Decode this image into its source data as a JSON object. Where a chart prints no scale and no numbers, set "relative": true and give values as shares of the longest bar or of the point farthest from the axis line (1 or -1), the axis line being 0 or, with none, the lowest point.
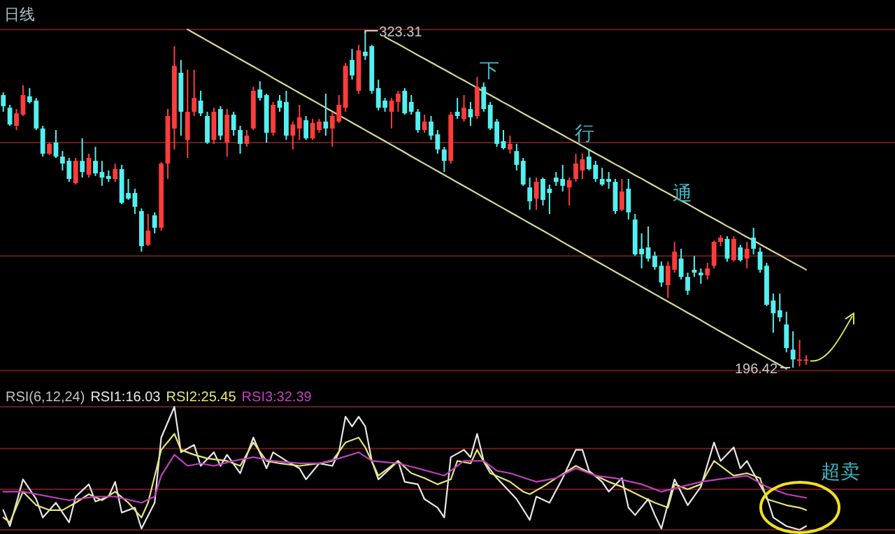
{
  "chart_data": [
    {
      "type": "candlestick",
      "title": "日线",
      "categories": [
        null,
        null,
        null,
        null,
        null,
        null,
        null,
        null,
        null,
        null,
        null,
        null,
        null,
        null,
        null,
        null,
        null,
        null,
        null,
        null,
        null,
        null,
        null,
        null,
        null,
        null,
        null,
        null,
        null,
        null,
        null,
        null,
        null,
        null,
        null,
        null,
        null,
        null,
        null,
        null,
        null,
        null,
        null,
        null,
        null,
        null,
        null,
        null,
        null,
        null,
        null,
        null,
        null,
        null,
        null,
        null,
        null,
        null,
        null,
        null,
        null,
        null,
        null,
        null,
        null,
        null,
        null,
        null,
        null,
        null,
        null,
        null,
        null,
        null,
        null,
        null,
        null,
        null,
        null,
        null,
        null,
        null,
        null,
        null,
        null,
        null,
        null,
        null,
        null,
        null,
        null,
        null,
        null,
        null,
        null,
        null,
        null,
        null,
        null,
        null,
        null,
        null,
        null,
        null,
        null,
        null,
        null,
        null,
        null,
        null,
        null,
        null,
        null,
        null,
        null,
        null,
        null,
        null,
        null,
        null,
        null,
        null,
        null
      ],
      "ohlc": [
        [
          299.1,
          300.1,
          292.8,
          294.9
        ],
        [
          294.3,
          295.4,
          287.5,
          288.0
        ],
        [
          287.5,
          293.8,
          285.9,
          292.2
        ],
        [
          291.7,
          302.8,
          291.2,
          299.1
        ],
        [
          298.6,
          301.7,
          295.9,
          296.5
        ],
        [
          297.0,
          298.0,
          285.9,
          286.5
        ],
        [
          286.5,
          287.5,
          275.9,
          277.0
        ],
        [
          277.0,
          281.2,
          276.5,
          280.7
        ],
        [
          281.2,
          285.9,
          275.4,
          275.9
        ],
        [
          275.9,
          278.0,
          270.7,
          273.3
        ],
        [
          274.3,
          275.4,
          266.4,
          267.5
        ],
        [
          265.9,
          275.4,
          265.4,
          274.3
        ],
        [
          274.3,
          282.8,
          268.0,
          270.1
        ],
        [
          269.1,
          277.0,
          268.0,
          275.4
        ],
        [
          274.3,
          279.6,
          268.6,
          269.6
        ],
        [
          270.1,
          274.3,
          264.9,
          268.0
        ],
        [
          268.6,
          270.7,
          266.4,
          267.5
        ],
        [
          267.5,
          273.3,
          266.4,
          271.2
        ],
        [
          271.2,
          272.8,
          258.0,
          258.5
        ],
        [
          262.2,
          267.5,
          259.6,
          260.1
        ],
        [
          262.2,
          263.8,
          254.3,
          257.0
        ],
        [
          255.4,
          256.4,
          240.1,
          242.2
        ],
        [
          242.7,
          254.3,
          242.2,
          248.0
        ],
        [
          253.8,
          254.9,
          247.0,
          249.1
        ],
        [
          249.1,
          273.8,
          248.0,
          273.3
        ],
        [
          273.3,
          293.8,
          267.5,
          291.2
        ],
        [
          286.5,
          317.5,
          278.6,
          310.1
        ],
        [
          307.5,
          312.3,
          283.8,
          292.8
        ],
        [
          282.2,
          308.6,
          275.4,
          292.8
        ],
        [
          292.8,
          308.6,
          291.2,
          298.0
        ],
        [
          297.0,
          300.7,
          291.2,
          292.2
        ],
        [
          291.2,
          292.8,
          280.7,
          281.2
        ],
        [
          282.2,
          294.3,
          280.7,
          292.8
        ],
        [
          293.8,
          294.9,
          282.2,
          283.8
        ],
        [
          281.2,
          293.8,
          275.9,
          291.7
        ],
        [
          291.7,
          292.8,
          283.8,
          285.9
        ],
        [
          285.9,
          287.5,
          277.0,
          280.7
        ],
        [
          280.7,
          285.9,
          279.6,
          283.8
        ],
        [
          286.5,
          302.2,
          285.9,
          300.7
        ],
        [
          301.2,
          304.3,
          297.0,
          298.0
        ],
        [
          299.1,
          299.6,
          281.2,
          284.9
        ],
        [
          284.9,
          296.5,
          283.8,
          295.4
        ],
        [
          297.0,
          299.1,
          292.8,
          294.3
        ],
        [
          296.5,
          300.7,
          282.2,
          283.8
        ],
        [
          283.8,
          289.1,
          278.6,
          288.0
        ],
        [
          286.5,
          295.4,
          282.2,
          290.7
        ],
        [
          289.6,
          291.2,
          282.2,
          282.8
        ],
        [
          282.8,
          290.1,
          282.2,
          288.6
        ],
        [
          285.9,
          290.1,
          284.9,
          289.1
        ],
        [
          289.1,
          299.6,
          283.8,
          286.5
        ],
        [
          286.5,
          292.8,
          279.6,
          291.2
        ],
        [
          289.1,
          299.1,
          288.6,
          295.4
        ],
        [
          294.3,
          311.2,
          292.8,
          310.1
        ],
        [
          312.3,
          316.5,
          304.9,
          306.5
        ],
        [
          300.7,
          318.0,
          299.6,
          315.9
        ],
        [
          315.4,
          323.31,
          312.3,
          313.8
        ],
        [
          317.5,
          318.0,
          299.6,
          300.7
        ],
        [
          301.7,
          304.9,
          293.3,
          294.3
        ],
        [
          297.0,
          298.0,
          292.8,
          294.3
        ],
        [
          292.8,
          298.0,
          286.5,
          297.0
        ],
        [
          296.5,
          300.7,
          292.8,
          299.6
        ],
        [
          300.7,
          301.7,
          291.7,
          292.2
        ],
        [
          296.5,
          299.1,
          291.7,
          292.8
        ],
        [
          292.8,
          293.8,
          284.9,
          285.9
        ],
        [
          285.9,
          291.7,
          284.9,
          289.1
        ],
        [
          289.1,
          291.2,
          282.2,
          283.8
        ],
        [
          284.3,
          285.9,
          277.0,
          278.6
        ],
        [
          278.6,
          279.6,
          270.1,
          274.3
        ],
        [
          274.3,
          292.8,
          273.3,
          291.7
        ],
        [
          292.8,
          298.0,
          290.1,
          291.2
        ],
        [
          290.1,
          299.1,
          289.1,
          294.3
        ],
        [
          293.8,
          296.5,
          287.5,
          290.7
        ],
        [
          291.2,
          305.9,
          290.1,
          302.2
        ],
        [
          302.2,
          303.8,
          292.8,
          293.8
        ],
        [
          295.4,
          296.5,
          285.9,
          286.5
        ],
        [
          289.1,
          290.1,
          279.6,
          280.7
        ],
        [
          281.7,
          285.9,
          278.6,
          279.1
        ],
        [
          278.6,
          283.8,
          277.0,
          280.7
        ],
        [
          278.0,
          280.7,
          270.7,
          272.8
        ],
        [
          274.3,
          275.4,
          264.9,
          265.4
        ],
        [
          264.3,
          268.0,
          255.9,
          259.1
        ],
        [
          260.1,
          268.0,
          255.9,
          266.4
        ],
        [
          267.5,
          268.0,
          257.5,
          259.6
        ],
        [
          263.8,
          265.4,
          254.3,
          262.2
        ],
        [
          268.0,
          270.1,
          264.9,
          266.4
        ],
        [
          267.5,
          272.8,
          262.8,
          264.9
        ],
        [
          264.3,
          268.0,
          257.5,
          267.0
        ],
        [
          267.5,
          277.0,
          266.4,
          273.3
        ],
        [
          270.7,
          277.0,
          267.5,
          274.9
        ],
        [
          275.9,
          278.6,
          270.7,
          271.2
        ],
        [
          272.8,
          274.3,
          266.4,
          267.5
        ],
        [
          267.5,
          271.7,
          264.9,
          265.4
        ],
        [
          267.5,
          270.1,
          263.8,
          266.4
        ],
        [
          266.4,
          267.5,
          254.3,
          255.4
        ],
        [
          255.9,
          267.5,
          255.4,
          262.8
        ],
        [
          263.8,
          267.5,
          252.2,
          254.9
        ],
        [
          252.2,
          254.3,
          238.5,
          239.1
        ],
        [
          241.2,
          247.0,
          233.8,
          239.1
        ],
        [
          241.7,
          249.6,
          236.4,
          237.5
        ],
        [
          238.5,
          240.1,
          233.3,
          234.3
        ],
        [
          234.8,
          236.4,
          226.9,
          228.5
        ],
        [
          227.5,
          236.4,
          222.7,
          234.8
        ],
        [
          233.3,
          243.8,
          232.2,
          240.1
        ],
        [
          237.5,
          241.2,
          229.6,
          230.6
        ],
        [
          230.6,
          232.2,
          223.8,
          225.4
        ],
        [
          233.3,
          238.5,
          230.6,
          232.2
        ],
        [
          232.2,
          233.8,
          228.0,
          231.2
        ],
        [
          231.2,
          235.9,
          229.6,
          233.8
        ],
        [
          234.8,
          244.3,
          233.8,
          243.8
        ],
        [
          243.8,
          246.4,
          242.2,
          245.4
        ],
        [
          244.9,
          245.9,
          236.4,
          237.5
        ],
        [
          236.9,
          245.9,
          236.4,
          244.9
        ],
        [
          241.7,
          242.7,
          236.4,
          236.9
        ],
        [
          237.5,
          243.8,
          233.8,
          241.2
        ],
        [
          245.4,
          249.1,
          239.1,
          241.2
        ],
        [
          240.1,
          241.7,
          232.2,
          233.3
        ],
        [
          234.8,
          235.9,
          219.6,
          220.1
        ],
        [
          221.7,
          224.3,
          209.6,
          216.9
        ],
        [
          218.0,
          224.3,
          213.8,
          215.4
        ],
        [
          212.7,
          217.5,
          202.2,
          203.8
        ],
        [
          203.2,
          210.1,
          196.42,
          199.5
        ],
        [
          199.0,
          206.9,
          196.9,
          199.5
        ],
        [
          199.0,
          201.1,
          197.5,
          199.5
        ]
      ],
      "colors": [
        "#54f0f0",
        "#54f0f0",
        "#ff3c3c",
        "#ff3c3c",
        "#54f0f0",
        "#54f0f0",
        "#54f0f0",
        "#ff3c3c",
        "#54f0f0",
        "#54f0f0",
        "#54f0f0",
        "#ff3c3c",
        "#54f0f0",
        "#ff3c3c",
        "#54f0f0",
        "#54f0f0",
        "#54f0f0",
        "#ff3c3c",
        "#54f0f0",
        "#54f0f0",
        "#54f0f0",
        "#54f0f0",
        "#ff3c3c",
        "#54f0f0",
        "#ff3c3c",
        "#ff3c3c",
        "#ff3c3c",
        "#54f0f0",
        "#ff3c3c",
        "#ff3c3c",
        "#54f0f0",
        "#54f0f0",
        "#ff3c3c",
        "#54f0f0",
        "#ff3c3c",
        "#54f0f0",
        "#54f0f0",
        "#ff3c3c",
        "#ff3c3c",
        "#54f0f0",
        "#54f0f0",
        "#ff3c3c",
        "#54f0f0",
        "#54f0f0",
        "#ff3c3c",
        "#ff3c3c",
        "#54f0f0",
        "#ff3c3c",
        "#ff3c3c",
        "#54f0f0",
        "#ff3c3c",
        "#ff3c3c",
        "#ff3c3c",
        "#54f0f0",
        "#ff3c3c",
        "#54f0f0",
        "#54f0f0",
        "#54f0f0",
        "#54f0f0",
        "#ff3c3c",
        "#ff3c3c",
        "#54f0f0",
        "#54f0f0",
        "#54f0f0",
        "#ff3c3c",
        "#54f0f0",
        "#54f0f0",
        "#54f0f0",
        "#ff3c3c",
        "#54f0f0",
        "#ff3c3c",
        "#54f0f0",
        "#ff3c3c",
        "#54f0f0",
        "#54f0f0",
        "#54f0f0",
        "#54f0f0",
        "#ff3c3c",
        "#54f0f0",
        "#54f0f0",
        "#54f0f0",
        "#ff3c3c",
        "#54f0f0",
        "#54f0f0",
        "#54f0f0",
        "#54f0f0",
        "#ff3c3c",
        "#ff3c3c",
        "#ff3c3c",
        "#54f0f0",
        "#54f0f0",
        "#54f0f0",
        "#54f0f0",
        "#54f0f0",
        "#ff3c3c",
        "#54f0f0",
        "#54f0f0",
        "#54f0f0",
        "#54f0f0",
        "#54f0f0",
        "#54f0f0",
        "#ff3c3c",
        "#ff3c3c",
        "#54f0f0",
        "#54f0f0",
        "#54f0f0",
        "#54f0f0",
        "#ff3c3c",
        "#ff3c3c",
        "#ff3c3c",
        "#54f0f0",
        "#ff3c3c",
        "#54f0f0",
        "#ff3c3c",
        "#54f0f0",
        "#54f0f0",
        "#54f0f0",
        "#54f0f0",
        "#54f0f0",
        "#54f0f0",
        "#54f0f0",
        "#ff3c3c",
        "#ff3c3c"
      ],
      "series": [
        {
          "type": "line",
          "color": "#d8d898",
          "values": [
            null,
            null,
            null,
            null,
            null,
            null,
            null,
            null,
            null,
            null,
            null,
            null,
            null,
            null,
            null,
            null,
            null,
            null,
            null,
            null,
            null,
            null,
            null,
            null,
            null,
            null,
            null,
            null,
            323.8,
            322.4,
            321.0,
            319.6,
            318.2,
            316.8,
            315.4,
            314.0,
            312.6,
            311.2,
            309.8,
            308.4,
            307.0,
            305.5,
            304.1,
            302.7,
            301.3,
            299.9,
            298.5,
            297.1,
            295.7,
            294.3,
            292.9,
            291.5,
            290.1,
            288.7,
            287.3,
            285.9,
            284.5,
            283.1,
            281.7,
            280.3,
            278.9,
            277.5,
            276.0,
            274.6,
            273.2,
            271.8,
            270.4,
            269.0,
            267.6,
            266.2,
            264.8,
            263.4,
            262.0,
            260.6,
            259.2,
            257.8,
            256.4,
            255.0,
            253.6,
            252.2,
            250.8,
            249.4,
            248.0,
            246.6,
            245.2,
            243.7,
            242.3,
            240.9,
            239.5,
            238.1,
            236.7,
            235.3,
            233.9,
            232.5,
            231.1,
            229.7,
            228.3,
            226.9,
            225.5,
            224.1,
            222.7,
            221.3,
            219.9,
            218.5,
            217.1,
            215.7,
            214.3,
            212.8,
            211.4,
            210.0,
            208.6,
            207.2,
            205.8,
            204.4,
            203.0,
            201.6,
            200.2,
            198.8,
            197.4,
            196.0,
            null,
            null,
            null
          ]
        },
        {
          "type": "line",
          "color": "#d8d898",
          "values": [
            null,
            null,
            null,
            null,
            null,
            null,
            null,
            null,
            null,
            null,
            null,
            null,
            null,
            null,
            null,
            null,
            null,
            null,
            null,
            null,
            null,
            null,
            null,
            null,
            null,
            null,
            null,
            null,
            null,
            null,
            null,
            null,
            null,
            null,
            null,
            null,
            null,
            null,
            null,
            null,
            null,
            null,
            null,
            null,
            null,
            null,
            null,
            null,
            null,
            null,
            null,
            null,
            null,
            null,
            null,
            null,
            null,
            null,
            321.0,
            319.6,
            318.3,
            316.9,
            315.5,
            314.1,
            312.8,
            311.4,
            310.0,
            308.7,
            307.3,
            305.9,
            304.6,
            303.2,
            301.8,
            300.4,
            299.1,
            297.7,
            296.3,
            295.0,
            293.6,
            292.2,
            290.8,
            289.5,
            288.1,
            286.7,
            285.4,
            284.0,
            282.6,
            281.3,
            279.9,
            278.5,
            277.1,
            275.8,
            274.4,
            273.0,
            271.7,
            270.3,
            268.9,
            267.6,
            266.2,
            264.8,
            263.4,
            262.1,
            260.7,
            259.3,
            258.0,
            256.6,
            255.2,
            253.8,
            252.5,
            251.1,
            249.7,
            248.4,
            247.0,
            245.6,
            244.3,
            242.9,
            241.5,
            240.1,
            238.8,
            237.4,
            236.0,
            234.7,
            233.3
          ]
        }
      ],
      "ref_lines": [
        {
          "axis": "y",
          "value": 323.8,
          "color": "#6a1c1c"
        },
        {
          "axis": "y",
          "value": 281.2,
          "color": "#6a1c1c"
        },
        {
          "axis": "y",
          "value": 238.5,
          "color": "#6a1c1c"
        },
        {
          "axis": "y",
          "value": 195.3,
          "color": "#6a1c1c"
        }
      ],
      "annotations": [
        {
          "text": "323.31",
          "y": 323.31
        },
        {
          "text": "196.42",
          "y": 196.42
        },
        "下",
        "行",
        "通"
      ]
    },
    {
      "type": "line",
      "relative": true,
      "categories": [
        null,
        null,
        null,
        null,
        null,
        null,
        null,
        null,
        null,
        null,
        null,
        null,
        null,
        null,
        null,
        null,
        null,
        null,
        null,
        null,
        null,
        null,
        null,
        null,
        null,
        null,
        null,
        null,
        null,
        null,
        null,
        null,
        null,
        null,
        null,
        null,
        null,
        null,
        null,
        null,
        null,
        null,
        null,
        null,
        null,
        null,
        null,
        null,
        null,
        null,
        null,
        null,
        null,
        null,
        null,
        null,
        null,
        null,
        null,
        null,
        null,
        null,
        null,
        null,
        null,
        null,
        null,
        null,
        null,
        null,
        null,
        null,
        null,
        null,
        null,
        null,
        null,
        null,
        null,
        null,
        null,
        null,
        null,
        null,
        null,
        null,
        null,
        null,
        null,
        null,
        null,
        null,
        null,
        null,
        null,
        null,
        null,
        null,
        null,
        null,
        null,
        null,
        null,
        null,
        null,
        null,
        null,
        null,
        null,
        null,
        null,
        null,
        null,
        null,
        null,
        null,
        null,
        null,
        null,
        null,
        null,
        null,
        null
      ],
      "series": [
        {
          "name": "RSI1:16.03",
          "color": "#e8e8e8",
          "values": [
            0.16,
            0.03,
            null,
            0.41,
            null,
            0.25,
            0.1,
            null,
            0.22,
            null,
            0.06,
            0.27,
            null,
            0.37,
            0.23,
            null,
            0.27,
            0.39,
            0.14,
            null,
            0.18,
            0.01,
            null,
            0.22,
            0.75,
            null,
            1.0,
            0.63,
            null,
            0.69,
            0.52,
            null,
            0.63,
            0.52,
            0.61,
            null,
            0.46,
            null,
            0.75,
            null,
            0.5,
            0.63,
            null,
            0.56,
            null,
            0.5,
            0.41,
            null,
            0.54,
            null,
            0.52,
            0.63,
            0.92,
            0.84,
            0.92,
            0.84,
            0.56,
            0.41,
            null,
            null,
            0.56,
            0.39,
            null,
            0.37,
            0.25,
            null,
            0.18,
            0.1,
            0.59,
            null,
            0.65,
            0.59,
            0.78,
            0.56,
            null,
            0.42,
            null,
            null,
            0.25,
            null,
            0.08,
            0.27,
            null,
            0.22,
            null,
            0.42,
            null,
            0.65,
            0.65,
            0.48,
            null,
            0.39,
            0.31,
            null,
            0.42,
            0.18,
            0.12,
            null,
            0.25,
            0.12,
            0.01,
            null,
            0.41,
            null,
            0.2,
            null,
            0.35,
            null,
            0.71,
            0.56,
            null,
            0.67,
            0.5,
            0.56,
            0.46,
            null,
            0.27,
            0.1,
            null,
            0.03,
            null,
            0.0,
            0.03
          ]
        },
        {
          "name": "RSI2:25.45",
          "color": "#e6e67a",
          "values": [
            0.1,
            0.06,
            null,
            0.31,
            null,
            0.2,
            null,
            0.16,
            null,
            0.16,
            null,
            0.22,
            null,
            0.29,
            null,
            0.24,
            null,
            0.31,
            null,
            0.22,
            null,
            0.1,
            0.22,
            null,
            0.65,
            null,
            0.78,
            0.65,
            null,
            0.61,
            null,
            0.58,
            null,
            null,
            0.56,
            null,
            0.52,
            null,
            0.71,
            null,
            0.56,
            null,
            0.54,
            null,
            null,
            0.52,
            null,
            null,
            0.54,
            null,
            0.56,
            null,
            0.71,
            null,
            0.75,
            0.67,
            null,
            0.44,
            null,
            null,
            0.56,
            null,
            0.46,
            null,
            0.42,
            null,
            0.37,
            null,
            0.41,
            0.56,
            null,
            0.54,
            0.65,
            null,
            0.46,
            null,
            null,
            0.39,
            null,
            0.31,
            0.29,
            null,
            0.35,
            null,
            0.42,
            null,
            null,
            0.52,
            null,
            null,
            0.44,
            null,
            0.39,
            null,
            0.35,
            null,
            null,
            0.27,
            null,
            0.22,
            null,
            0.18,
            0.37,
            null,
            0.33,
            null,
            0.37,
            null,
            0.56,
            null,
            null,
            0.44,
            null,
            0.46,
            null,
            0.42,
            0.25,
            null,
            null,
            0.2,
            null,
            0.18,
            0.16
          ]
        },
        {
          "name": "RSI3:32.39",
          "color": "#c040c0",
          "values": [
            0.31,
            null,
            null,
            0.31,
            null,
            null,
            null,
            0.27,
            null,
            null,
            0.24,
            null,
            null,
            null,
            0.27,
            null,
            null,
            0.27,
            null,
            null,
            null,
            0.22,
            null,
            0.27,
            0.44,
            null,
            0.61,
            null,
            0.52,
            null,
            0.54,
            null,
            0.52,
            null,
            null,
            0.56,
            null,
            null,
            0.59,
            null,
            null,
            0.56,
            null,
            null,
            null,
            0.54,
            null,
            null,
            0.54,
            null,
            null,
            0.58,
            null,
            null,
            0.63,
            null,
            0.56,
            null,
            null,
            null,
            0.54,
            null,
            null,
            0.5,
            null,
            null,
            null,
            0.44,
            null,
            null,
            0.56,
            null,
            null,
            0.56,
            null,
            0.48,
            null,
            0.46,
            null,
            null,
            null,
            0.39,
            null,
            null,
            0.42,
            null,
            null,
            0.5,
            null,
            null,
            0.44,
            null,
            null,
            0.42,
            null,
            null,
            null,
            0.37,
            null,
            null,
            0.31,
            null,
            null,
            0.35,
            null,
            null,
            0.39,
            null,
            null,
            null,
            0.42,
            null,
            null,
            0.44,
            null,
            null,
            0.35,
            null,
            null,
            0.29,
            null,
            null,
            0.26
          ]
        }
      ],
      "ref_lines": [
        {
          "axis": "y",
          "value": 1,
          "color": "#6a1c1c"
        },
        {
          "axis": "y",
          "value": 0.66,
          "color": "#6a1c1c"
        },
        {
          "axis": "y",
          "value": 0.33,
          "color": "#6a1c1c"
        },
        {
          "axis": "y",
          "value": 0,
          "color": "#6a1c1c"
        }
      ],
      "annotations": [
        "RSI(6,12,24)",
        "超卖"
      ]
    }
  ]
}
